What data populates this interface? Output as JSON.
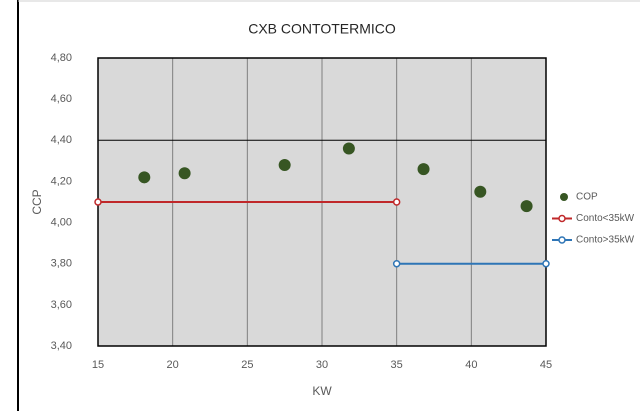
{
  "chart_data": {
    "type": "scatter",
    "title": "CXB CONTOTERMICO",
    "xlabel": "KW",
    "ylabel": "CCP",
    "xlim": [
      15,
      45
    ],
    "xticks": [
      15,
      20,
      25,
      30,
      35,
      40,
      45
    ],
    "ylim": [
      3.4,
      4.8
    ],
    "yticks": [
      {
        "value": 3.4,
        "label": "3,40"
      },
      {
        "value": 3.6,
        "label": "3,60"
      },
      {
        "value": 3.8,
        "label": "3,80"
      },
      {
        "value": 4.0,
        "label": "4,00"
      },
      {
        "value": 4.2,
        "label": "4,20"
      },
      {
        "value": 4.4,
        "label": "4,40"
      },
      {
        "value": 4.6,
        "label": "4,60"
      },
      {
        "value": 4.8,
        "label": "4,80"
      }
    ],
    "grid_x": true,
    "hlines": [
      4.4
    ],
    "legend": "right",
    "series": [
      {
        "name": "COP",
        "color": "#375623",
        "mode": "markers",
        "x": [
          18.1,
          20.8,
          27.5,
          31.8,
          36.8,
          40.6,
          43.7
        ],
        "values": [
          4.22,
          4.24,
          4.28,
          4.36,
          4.26,
          4.15,
          4.08
        ]
      },
      {
        "name": "Conto<35kW",
        "color": "#c0282a",
        "mode": "lines+markers",
        "x": [
          15,
          35
        ],
        "values": [
          4.1,
          4.1
        ]
      },
      {
        "name": "Conto>35kW",
        "color": "#2e75b6",
        "mode": "lines+markers",
        "x": [
          35,
          45
        ],
        "values": [
          3.8,
          3.8
        ]
      }
    ]
  }
}
